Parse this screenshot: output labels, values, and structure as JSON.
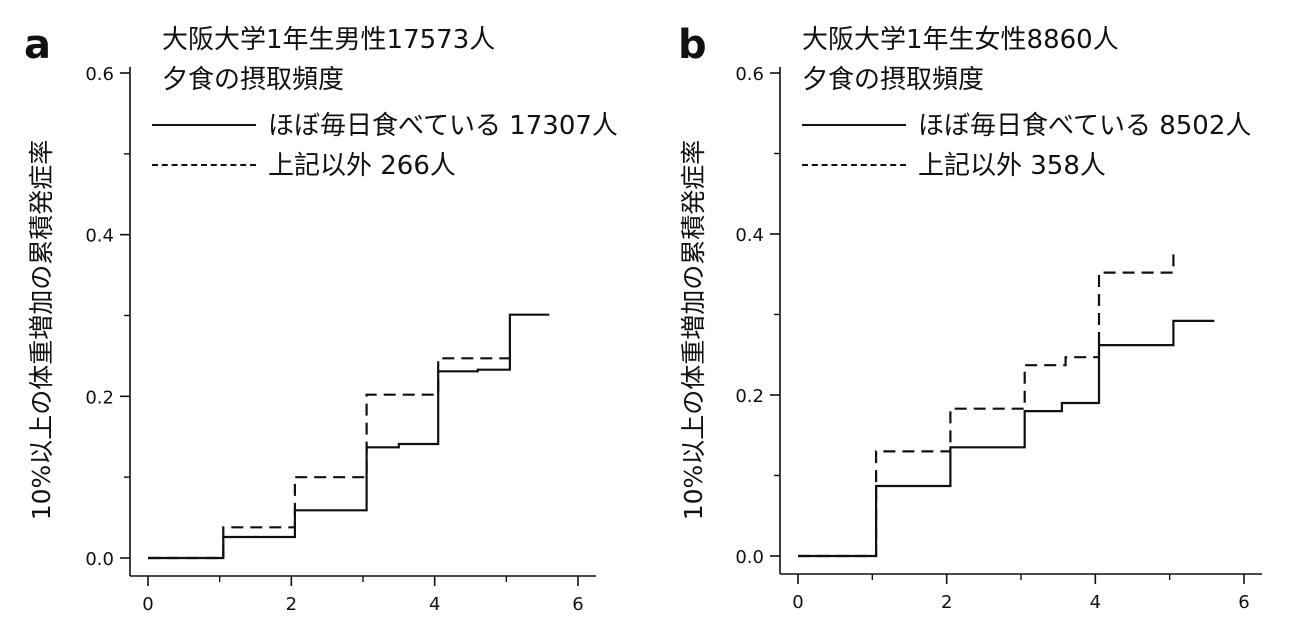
{
  "chart_data": [
    {
      "type": "line",
      "panel_label": "a",
      "title_lines": [
        "大阪大学1年生男性17573人",
        "夕食の摂取頻度"
      ],
      "xlabel": "",
      "ylabel": "10%以上の体重増加の累積発症率",
      "xlim": [
        0,
        6
      ],
      "ylim": [
        0,
        0.6
      ],
      "xticks": [
        0,
        2,
        4,
        6
      ],
      "yticks": [
        0.0,
        0.2,
        0.4,
        0.6
      ],
      "xtick_labels": [
        "0",
        "2",
        "4",
        "6"
      ],
      "ytick_labels": [
        "0.0",
        "0.2",
        "0.4",
        "0.6"
      ],
      "legend_placement": "top",
      "series": [
        {
          "name": "ほぼ毎日食べている 17307人",
          "style": "solid",
          "x": [
            0,
            1.05,
            1.05,
            2.05,
            2.05,
            3.05,
            3.05,
            3.5,
            3.5,
            4.05,
            4.05,
            4.6,
            4.6,
            5.05,
            5.05,
            5.6
          ],
          "y": [
            0,
            0,
            0.026,
            0.026,
            0.059,
            0.059,
            0.137,
            0.137,
            0.141,
            0.141,
            0.231,
            0.231,
            0.233,
            0.233,
            0.301,
            0.301
          ]
        },
        {
          "name": "上記以外 266人",
          "style": "dashed",
          "x": [
            0,
            1.05,
            1.05,
            2.05,
            2.05,
            3.05,
            3.05,
            4.05,
            4.05,
            5.05
          ],
          "y": [
            0,
            0,
            0.038,
            0.038,
            0.1,
            0.1,
            0.202,
            0.202,
            0.247,
            0.247
          ]
        }
      ]
    },
    {
      "type": "line",
      "panel_label": "b",
      "title_lines": [
        "大阪大学1年生女性8860人",
        "夕食の摂取頻度"
      ],
      "xlabel": "",
      "ylabel": "10%以上の体重増加の累積発症率",
      "xlim": [
        0,
        6
      ],
      "ylim": [
        0,
        0.6
      ],
      "xticks": [
        0,
        2,
        4,
        6
      ],
      "yticks": [
        0.0,
        0.2,
        0.4,
        0.6
      ],
      "xtick_labels": [
        "0",
        "2",
        "4",
        "6"
      ],
      "ytick_labels": [
        "0.0",
        "0.2",
        "0.4",
        "0.6"
      ],
      "legend_placement": "top",
      "series": [
        {
          "name": "ほぼ毎日食べている 8502人",
          "style": "solid",
          "x": [
            0,
            1.05,
            1.05,
            2.05,
            2.05,
            3.05,
            3.05,
            3.55,
            3.55,
            4.05,
            4.05,
            5.05,
            5.05,
            5.6
          ],
          "y": [
            0,
            0,
            0.087,
            0.087,
            0.135,
            0.135,
            0.18,
            0.18,
            0.19,
            0.19,
            0.262,
            0.262,
            0.292,
            0.292
          ]
        },
        {
          "name": "上記以外 358人",
          "style": "dashed",
          "x": [
            0,
            1.05,
            1.05,
            2.05,
            2.05,
            3.05,
            3.05,
            3.6,
            3.6,
            4.05,
            4.05,
            5.05,
            5.05
          ],
          "y": [
            0,
            0,
            0.13,
            0.13,
            0.183,
            0.183,
            0.237,
            0.237,
            0.247,
            0.247,
            0.352,
            0.352,
            0.38
          ]
        }
      ]
    }
  ]
}
